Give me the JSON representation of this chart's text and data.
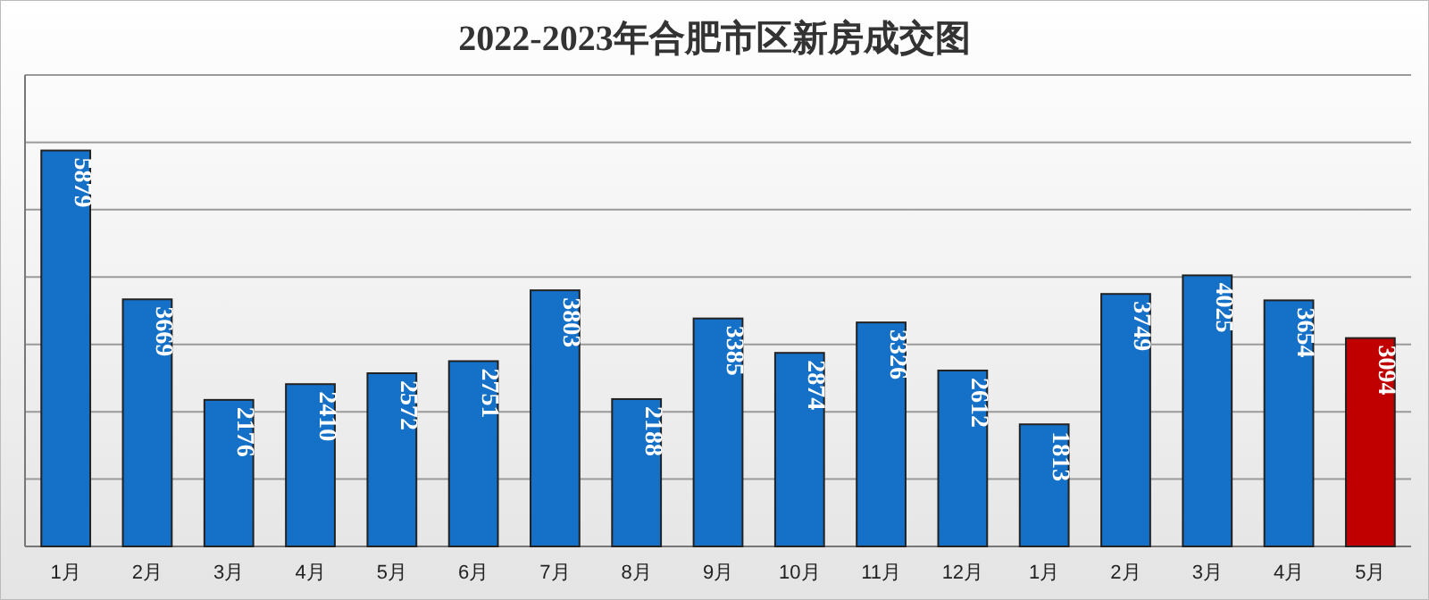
{
  "chart_data": {
    "type": "bar",
    "title": "2022-2023年合肥市区新房成交图",
    "categories": [
      "1月",
      "2月",
      "3月",
      "4月",
      "5月",
      "6月",
      "7月",
      "8月",
      "9月",
      "10月",
      "11月",
      "12月",
      "1月",
      "2月",
      "3月",
      "4月",
      "5月"
    ],
    "values": [
      5879,
      3669,
      2176,
      2410,
      2572,
      2751,
      3803,
      2188,
      3385,
      2874,
      3326,
      2612,
      1813,
      3749,
      4025,
      3654,
      3094
    ],
    "colors": [
      "#1570c8",
      "#1570c8",
      "#1570c8",
      "#1570c8",
      "#1570c8",
      "#1570c8",
      "#1570c8",
      "#1570c8",
      "#1570c8",
      "#1570c8",
      "#1570c8",
      "#1570c8",
      "#1570c8",
      "#1570c8",
      "#1570c8",
      "#1570c8",
      "#c00000"
    ],
    "ylim": [
      0,
      7000
    ],
    "yticks": [
      {
        "value": 0,
        "label": null
      },
      {
        "value": 1000,
        "label": null
      },
      {
        "value": 2000,
        "label": null
      },
      {
        "value": 3000,
        "label": null
      },
      {
        "value": 4000,
        "label": null
      },
      {
        "value": 5000,
        "label": null
      },
      {
        "value": 6000,
        "label": null
      },
      {
        "value": 7000,
        "label": null
      }
    ],
    "grid": "y",
    "data_labels": true
  }
}
